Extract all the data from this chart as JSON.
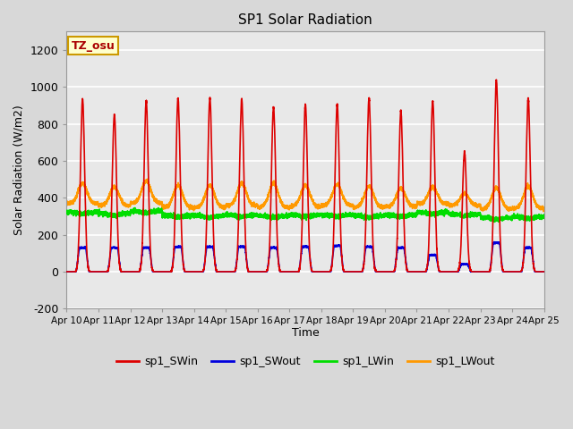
{
  "title": "SP1 Solar Radiation",
  "xlabel": "Time",
  "ylabel": "Solar Radiation (W/m2)",
  "ylim": [
    -200,
    1300
  ],
  "xlim": [
    0,
    15
  ],
  "bg_color": "#d8d8d8",
  "plot_bg_color": "#e8e8e8",
  "annotation_text": "TZ_osu",
  "annotation_bg": "#ffffcc",
  "annotation_border": "#cc9900",
  "xtick_labels": [
    "Apr 10",
    "Apr 11",
    "Apr 12",
    "Apr 13",
    "Apr 14",
    "Apr 15",
    "Apr 16",
    "Apr 17",
    "Apr 18",
    "Apr 19",
    "Apr 20",
    "Apr 21",
    "Apr 22",
    "Apr 23",
    "Apr 24",
    "Apr 25"
  ],
  "ytick_values": [
    -200,
    0,
    200,
    400,
    600,
    800,
    1000,
    1200
  ],
  "colors": {
    "sp1_SWin": "#dd0000",
    "sp1_SWout": "#0000dd",
    "sp1_LWin": "#00dd00",
    "sp1_LWout": "#ff9900"
  },
  "num_days": 15,
  "sw_in_peaks": [
    935,
    850,
    925,
    940,
    940,
    935,
    890,
    905,
    905,
    940,
    870,
    925,
    650,
    1040,
    940
  ],
  "sw_out_peaks": [
    130,
    130,
    130,
    135,
    135,
    135,
    130,
    135,
    140,
    135,
    130,
    90,
    40,
    155,
    130
  ],
  "lw_in_base": [
    322,
    315,
    328,
    305,
    303,
    308,
    303,
    308,
    308,
    303,
    308,
    322,
    312,
    292,
    298
  ],
  "lw_out_base": [
    368,
    358,
    372,
    348,
    348,
    358,
    348,
    352,
    358,
    348,
    352,
    368,
    358,
    338,
    342
  ],
  "lw_out_day_bump": [
    110,
    100,
    120,
    120,
    120,
    120,
    130,
    115,
    115,
    115,
    100,
    90,
    65,
    115,
    120
  ],
  "legend_entries": [
    "sp1_SWin",
    "sp1_SWout",
    "sp1_LWin",
    "sp1_LWout"
  ]
}
